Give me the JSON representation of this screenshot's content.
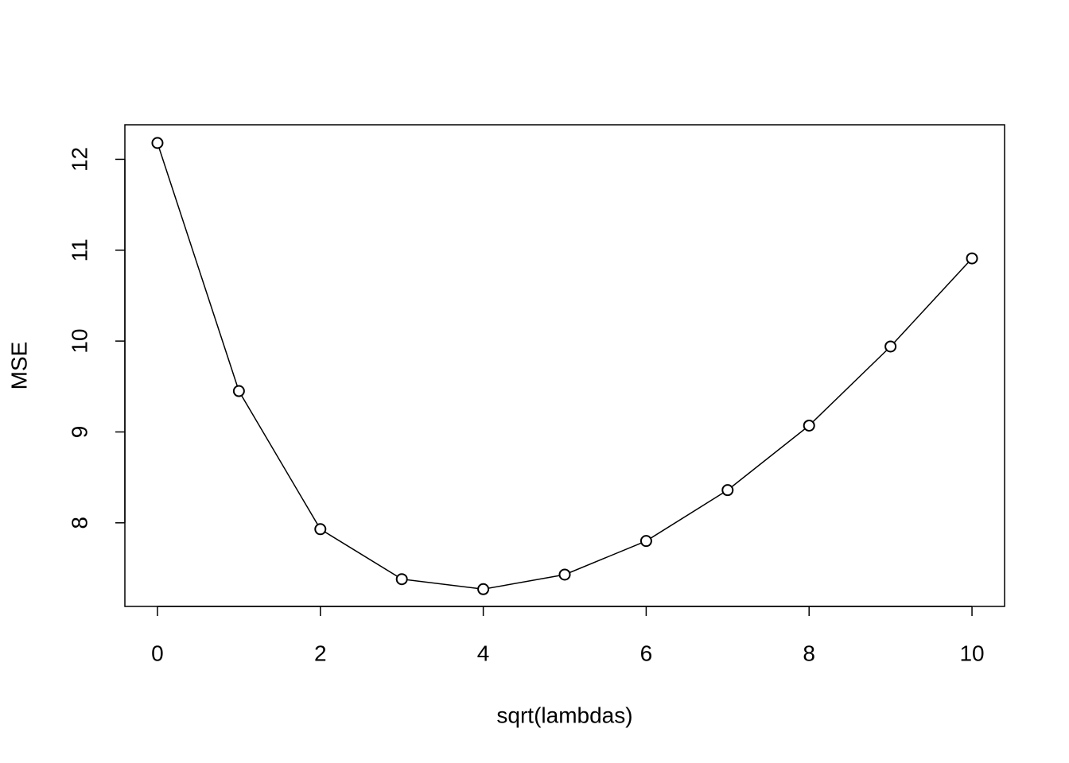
{
  "chart_data": {
    "type": "line",
    "x_label": "sqrt(lambdas)",
    "y_label": "MSE",
    "x": [
      0,
      1,
      2,
      3,
      4,
      5,
      6,
      7,
      8,
      9,
      10
    ],
    "series": [
      {
        "color": "#000000",
        "values": [
          12.18,
          9.45,
          7.93,
          7.38,
          7.27,
          7.43,
          7.8,
          8.36,
          9.07,
          9.94,
          10.91
        ]
      }
    ],
    "markers": true,
    "xlim": [
      -0.4,
      10.4
    ],
    "ylim": [
      7.08,
      12.38
    ],
    "xticks": [
      0,
      2,
      4,
      6,
      8,
      10
    ],
    "yticks": [
      8,
      9,
      10,
      11,
      12
    ]
  }
}
